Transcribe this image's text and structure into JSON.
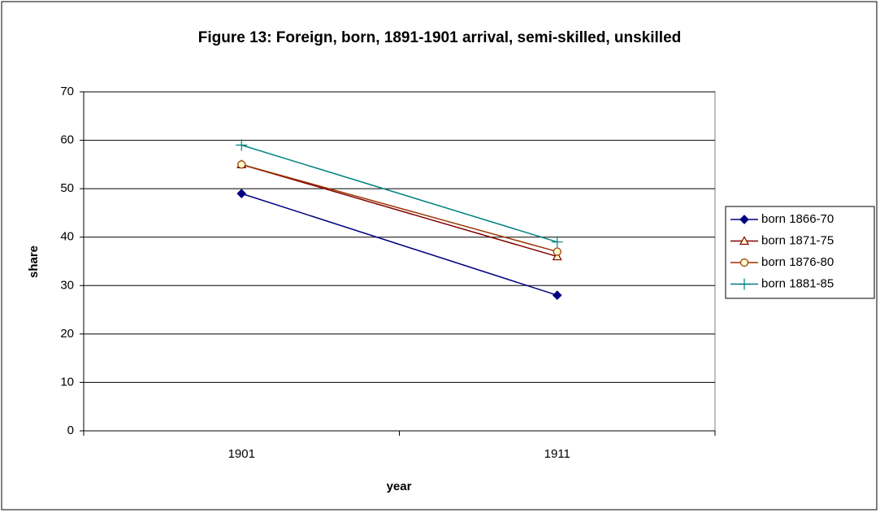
{
  "chart_data": {
    "type": "line",
    "title": "Figure 13: Foreign, born, 1891-1901 arrival, semi-skilled, unskilled",
    "xlabel": "year",
    "ylabel": "share",
    "categories": [
      "1901",
      "1911"
    ],
    "series": [
      {
        "name": "born 1866-70",
        "color": "#000080",
        "marker": "diamond",
        "values": [
          49,
          28
        ]
      },
      {
        "name": "born 1871-75",
        "color": "#800000",
        "marker": "triangle",
        "values": [
          55,
          36
        ]
      },
      {
        "name": "born 1876-80",
        "color": "#993300",
        "marker": "circle",
        "values": [
          55,
          37
        ]
      },
      {
        "name": "born 1881-85",
        "color": "#008080",
        "marker": "plus",
        "values": [
          59,
          39
        ]
      }
    ],
    "ylim": [
      0,
      70
    ],
    "yticks": [
      0,
      10,
      20,
      30,
      40,
      50,
      60,
      70
    ],
    "grid": true,
    "legend": "right"
  }
}
